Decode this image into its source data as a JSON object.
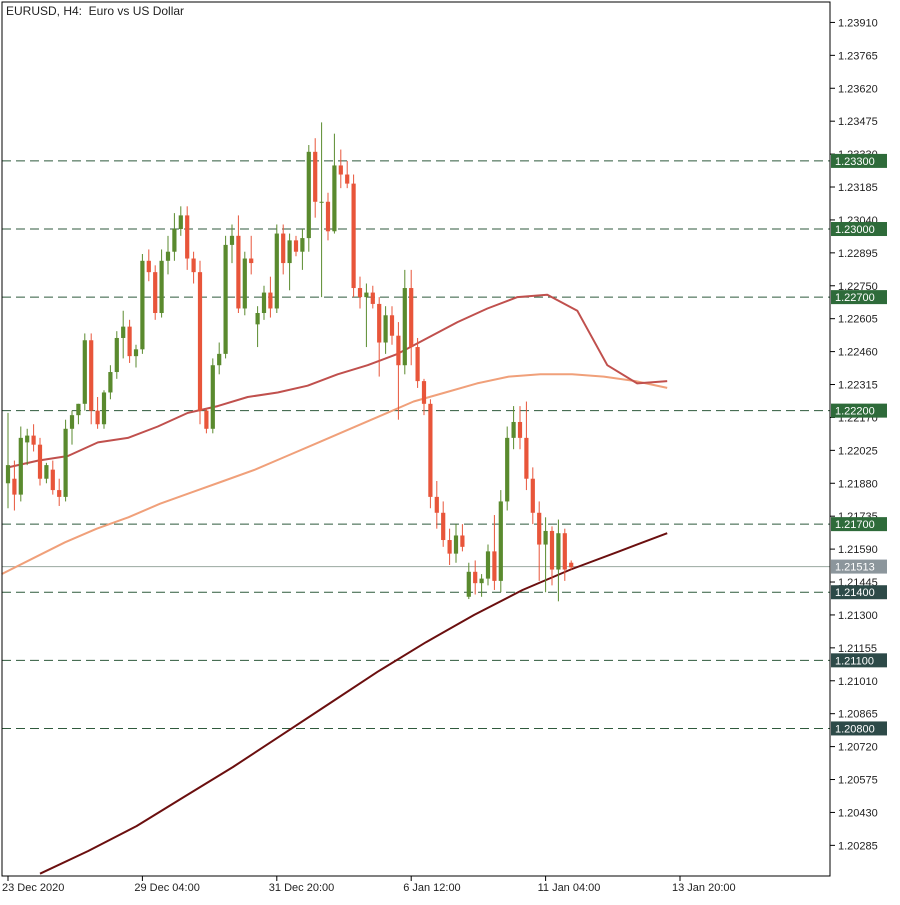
{
  "header": {
    "title": "EURUSD, H4:  Euro vs US Dollar"
  },
  "chart_data": {
    "type": "candlestick",
    "symbol": "EURUSD",
    "timeframe": "H4",
    "title": "EURUSD, H4:  Euro vs US Dollar",
    "ylim": [
      1.2015,
      1.24
    ],
    "grid": false,
    "y_ticks": [
      "1.23910",
      "1.23765",
      "1.23620",
      "1.23475",
      "1.23330",
      "1.23185",
      "1.23040",
      "1.22895",
      "1.22750",
      "1.22605",
      "1.22460",
      "1.22315",
      "1.22170",
      "1.22025",
      "1.21880",
      "1.21735",
      "1.21590",
      "1.21445",
      "1.21300",
      "1.21155",
      "1.21010",
      "1.20865",
      "1.20720",
      "1.20575",
      "1.20430",
      "1.20285"
    ],
    "x_labels": [
      {
        "label": "23 Dec 2020",
        "index": 0
      },
      {
        "label": "29 Dec 04:00",
        "index": 21
      },
      {
        "label": "31 Dec 20:00",
        "index": 42
      },
      {
        "label": "6 Jan 12:00",
        "index": 63
      },
      {
        "label": "11 Jan 04:00",
        "index": 84
      },
      {
        "label": "13 Jan 20:00",
        "index": 105
      }
    ],
    "current_price": "1.21513",
    "levels": [
      "1.23300",
      "1.23000",
      "1.22700",
      "1.22200",
      "1.21700",
      "1.21400",
      "1.21100",
      "1.20800"
    ],
    "colors": {
      "bull": "#5a8a2e",
      "bear": "#e8553a",
      "level_line": "#2f5a3c",
      "level_label_bg": "#2e6b3a",
      "level_label_bg_dark": "#2d4a48",
      "current_label_bg": "#8c969c",
      "current_line": "#9aa8a0",
      "ma_fast": "#c0504d",
      "ma_mid": "#f0a07a",
      "ma_slow": "#6b0f0f"
    },
    "candles": [
      {
        "o": 1.2188,
        "h": 1.2219,
        "l": 1.2177,
        "c": 1.2196
      },
      {
        "o": 1.219,
        "h": 1.2198,
        "l": 1.2176,
        "c": 1.2183
      },
      {
        "o": 1.2183,
        "h": 1.2213,
        "l": 1.218,
        "c": 1.2208
      },
      {
        "o": 1.2206,
        "h": 1.2212,
        "l": 1.2196,
        "c": 1.2209
      },
      {
        "o": 1.2209,
        "h": 1.2214,
        "l": 1.2202,
        "c": 1.2205
      },
      {
        "o": 1.2205,
        "h": 1.2208,
        "l": 1.2187,
        "c": 1.219
      },
      {
        "o": 1.219,
        "h": 1.2197,
        "l": 1.2188,
        "c": 1.2196
      },
      {
        "o": 1.2194,
        "h": 1.2198,
        "l": 1.2183,
        "c": 1.2185
      },
      {
        "o": 1.2185,
        "h": 1.219,
        "l": 1.2178,
        "c": 1.2182
      },
      {
        "o": 1.2182,
        "h": 1.2216,
        "l": 1.218,
        "c": 1.2212
      },
      {
        "o": 1.2212,
        "h": 1.222,
        "l": 1.2205,
        "c": 1.2218
      },
      {
        "o": 1.2218,
        "h": 1.2223,
        "l": 1.2214,
        "c": 1.2223
      },
      {
        "o": 1.2223,
        "h": 1.2254,
        "l": 1.222,
        "c": 1.2251
      },
      {
        "o": 1.2251,
        "h": 1.2254,
        "l": 1.2214,
        "c": 1.222
      },
      {
        "o": 1.222,
        "h": 1.2226,
        "l": 1.2212,
        "c": 1.2214
      },
      {
        "o": 1.2214,
        "h": 1.2229,
        "l": 1.2212,
        "c": 1.2228
      },
      {
        "o": 1.2228,
        "h": 1.224,
        "l": 1.2225,
        "c": 1.2237
      },
      {
        "o": 1.2237,
        "h": 1.2255,
        "l": 1.2234,
        "c": 1.2252
      },
      {
        "o": 1.2252,
        "h": 1.2264,
        "l": 1.2243,
        "c": 1.2257
      },
      {
        "o": 1.2257,
        "h": 1.226,
        "l": 1.2241,
        "c": 1.2244
      },
      {
        "o": 1.2244,
        "h": 1.2249,
        "l": 1.2239,
        "c": 1.2247
      },
      {
        "o": 1.2247,
        "h": 1.2289,
        "l": 1.2245,
        "c": 1.2286
      },
      {
        "o": 1.2286,
        "h": 1.2291,
        "l": 1.2277,
        "c": 1.2281
      },
      {
        "o": 1.2281,
        "h": 1.2284,
        "l": 1.226,
        "c": 1.2263
      },
      {
        "o": 1.2263,
        "h": 1.2291,
        "l": 1.2261,
        "c": 1.2286
      },
      {
        "o": 1.2286,
        "h": 1.2297,
        "l": 1.228,
        "c": 1.229
      },
      {
        "o": 1.229,
        "h": 1.2307,
        "l": 1.2286,
        "c": 1.23
      },
      {
        "o": 1.23,
        "h": 1.231,
        "l": 1.2297,
        "c": 1.2306
      },
      {
        "o": 1.2306,
        "h": 1.231,
        "l": 1.2282,
        "c": 1.2287
      },
      {
        "o": 1.2287,
        "h": 1.229,
        "l": 1.2276,
        "c": 1.2281
      },
      {
        "o": 1.2281,
        "h": 1.2286,
        "l": 1.2214,
        "c": 1.222
      },
      {
        "o": 1.222,
        "h": 1.2221,
        "l": 1.221,
        "c": 1.2212
      },
      {
        "o": 1.2212,
        "h": 1.2243,
        "l": 1.221,
        "c": 1.224
      },
      {
        "o": 1.224,
        "h": 1.225,
        "l": 1.2236,
        "c": 1.2245
      },
      {
        "o": 1.2245,
        "h": 1.2297,
        "l": 1.2243,
        "c": 1.2293
      },
      {
        "o": 1.2293,
        "h": 1.2302,
        "l": 1.2285,
        "c": 1.2297
      },
      {
        "o": 1.2297,
        "h": 1.2306,
        "l": 1.2263,
        "c": 1.2265
      },
      {
        "o": 1.2265,
        "h": 1.229,
        "l": 1.2262,
        "c": 1.2287
      },
      {
        "o": 1.2287,
        "h": 1.2297,
        "l": 1.228,
        "c": 1.2285
      },
      {
        "o": 1.2258,
        "h": 1.2266,
        "l": 1.2248,
        "c": 1.2263
      },
      {
        "o": 1.2263,
        "h": 1.2275,
        "l": 1.226,
        "c": 1.2272
      },
      {
        "o": 1.2272,
        "h": 1.2279,
        "l": 1.2261,
        "c": 1.2265
      },
      {
        "o": 1.2265,
        "h": 1.2302,
        "l": 1.2263,
        "c": 1.2298
      },
      {
        "o": 1.2298,
        "h": 1.2302,
        "l": 1.228,
        "c": 1.2285
      },
      {
        "o": 1.2285,
        "h": 1.2298,
        "l": 1.2273,
        "c": 1.2295
      },
      {
        "o": 1.2295,
        "h": 1.2297,
        "l": 1.2288,
        "c": 1.229
      },
      {
        "o": 1.229,
        "h": 1.23,
        "l": 1.2282,
        "c": 1.2296
      },
      {
        "o": 1.2296,
        "h": 1.2337,
        "l": 1.229,
        "c": 1.2334
      },
      {
        "o": 1.2334,
        "h": 1.234,
        "l": 1.2305,
        "c": 1.2312
      },
      {
        "o": 1.2312,
        "h": 1.2347,
        "l": 1.227,
        "c": 1.2312
      },
      {
        "o": 1.2312,
        "h": 1.2316,
        "l": 1.2295,
        "c": 1.2299
      },
      {
        "o": 1.2299,
        "h": 1.2342,
        "l": 1.2298,
        "c": 1.2328
      },
      {
        "o": 1.2328,
        "h": 1.2335,
        "l": 1.2318,
        "c": 1.2324
      },
      {
        "o": 1.2324,
        "h": 1.233,
        "l": 1.2318,
        "c": 1.232
      },
      {
        "o": 1.232,
        "h": 1.2324,
        "l": 1.227,
        "c": 1.2274
      },
      {
        "o": 1.2274,
        "h": 1.2279,
        "l": 1.2265,
        "c": 1.227
      },
      {
        "o": 1.227,
        "h": 1.2276,
        "l": 1.2248,
        "c": 1.2272
      },
      {
        "o": 1.2272,
        "h": 1.2275,
        "l": 1.2265,
        "c": 1.2267
      },
      {
        "o": 1.2267,
        "h": 1.227,
        "l": 1.2235,
        "c": 1.225
      },
      {
        "o": 1.225,
        "h": 1.2266,
        "l": 1.2245,
        "c": 1.2262
      },
      {
        "o": 1.2262,
        "h": 1.2266,
        "l": 1.2249,
        "c": 1.2253
      },
      {
        "o": 1.2253,
        "h": 1.2259,
        "l": 1.2216,
        "c": 1.224
      },
      {
        "o": 1.224,
        "h": 1.2282,
        "l": 1.2236,
        "c": 1.2274
      },
      {
        "o": 1.2274,
        "h": 1.2282,
        "l": 1.224,
        "c": 1.2248
      },
      {
        "o": 1.2248,
        "h": 1.2252,
        "l": 1.223,
        "c": 1.2233
      },
      {
        "o": 1.2233,
        "h": 1.2234,
        "l": 1.2218,
        "c": 1.2223
      },
      {
        "o": 1.2223,
        "h": 1.2225,
        "l": 1.2177,
        "c": 1.2182
      },
      {
        "o": 1.2182,
        "h": 1.2189,
        "l": 1.2168,
        "c": 1.2175
      },
      {
        "o": 1.2175,
        "h": 1.218,
        "l": 1.216,
        "c": 1.2163
      },
      {
        "o": 1.2163,
        "h": 1.2168,
        "l": 1.2152,
        "c": 1.2157
      },
      {
        "o": 1.2157,
        "h": 1.217,
        "l": 1.2153,
        "c": 1.2165
      },
      {
        "o": 1.2165,
        "h": 1.217,
        "l": 1.2158,
        "c": 1.216
      },
      {
        "o": 1.2138,
        "h": 1.2153,
        "l": 1.2137,
        "c": 1.2149
      },
      {
        "o": 1.2149,
        "h": 1.2154,
        "l": 1.2139,
        "c": 1.2144
      },
      {
        "o": 1.2144,
        "h": 1.2148,
        "l": 1.2138,
        "c": 1.2146
      },
      {
        "o": 1.2146,
        "h": 1.2161,
        "l": 1.2143,
        "c": 1.2158
      },
      {
        "o": 1.2158,
        "h": 1.2174,
        "l": 1.2141,
        "c": 1.2145
      },
      {
        "o": 1.2145,
        "h": 1.2185,
        "l": 1.214,
        "c": 1.218
      },
      {
        "o": 1.218,
        "h": 1.2213,
        "l": 1.2176,
        "c": 1.2208
      },
      {
        "o": 1.2208,
        "h": 1.2222,
        "l": 1.2203,
        "c": 1.2215
      },
      {
        "o": 1.2215,
        "h": 1.2222,
        "l": 1.2203,
        "c": 1.2208
      },
      {
        "o": 1.2208,
        "h": 1.2224,
        "l": 1.2185,
        "c": 1.219
      },
      {
        "o": 1.219,
        "h": 1.2195,
        "l": 1.217,
        "c": 1.2175
      },
      {
        "o": 1.2175,
        "h": 1.218,
        "l": 1.2145,
        "c": 1.2161
      },
      {
        "o": 1.2161,
        "h": 1.2173,
        "l": 1.214,
        "c": 1.2167
      },
      {
        "o": 1.2167,
        "h": 1.2169,
        "l": 1.2143,
        "c": 1.215
      },
      {
        "o": 1.215,
        "h": 1.2172,
        "l": 1.2136,
        "c": 1.2166
      },
      {
        "o": 1.2166,
        "h": 1.2168,
        "l": 1.2145,
        "c": 1.215
      },
      {
        "o": 1.2153,
        "h": 1.2154,
        "l": 1.215,
        "c": 1.2151
      }
    ],
    "ma_fast": [
      1.2195,
      1.2198,
      1.22,
      1.2206,
      1.2208,
      1.2213,
      1.2219,
      1.2222,
      1.2226,
      1.2228,
      1.2231,
      1.2236,
      1.224,
      1.2245,
      1.2252,
      1.2259,
      1.2265,
      1.227,
      1.2271,
      1.2264,
      1.224,
      1.2232,
      1.2233
    ],
    "ma_mid": [
      1.2148,
      1.2155,
      1.2162,
      1.2168,
      1.2173,
      1.2179,
      1.2184,
      1.2189,
      1.2194,
      1.22,
      1.2206,
      1.2212,
      1.2218,
      1.2224,
      1.2228,
      1.2232,
      1.2235,
      1.2236,
      1.2236,
      1.2235,
      1.2233,
      1.223
    ],
    "ma_slow": [
      1.2016,
      1.2026,
      1.2037,
      1.205,
      1.2063,
      1.2077,
      1.2091,
      1.2105,
      1.2118,
      1.213,
      1.2141,
      1.215,
      1.2158,
      1.2166
    ]
  }
}
